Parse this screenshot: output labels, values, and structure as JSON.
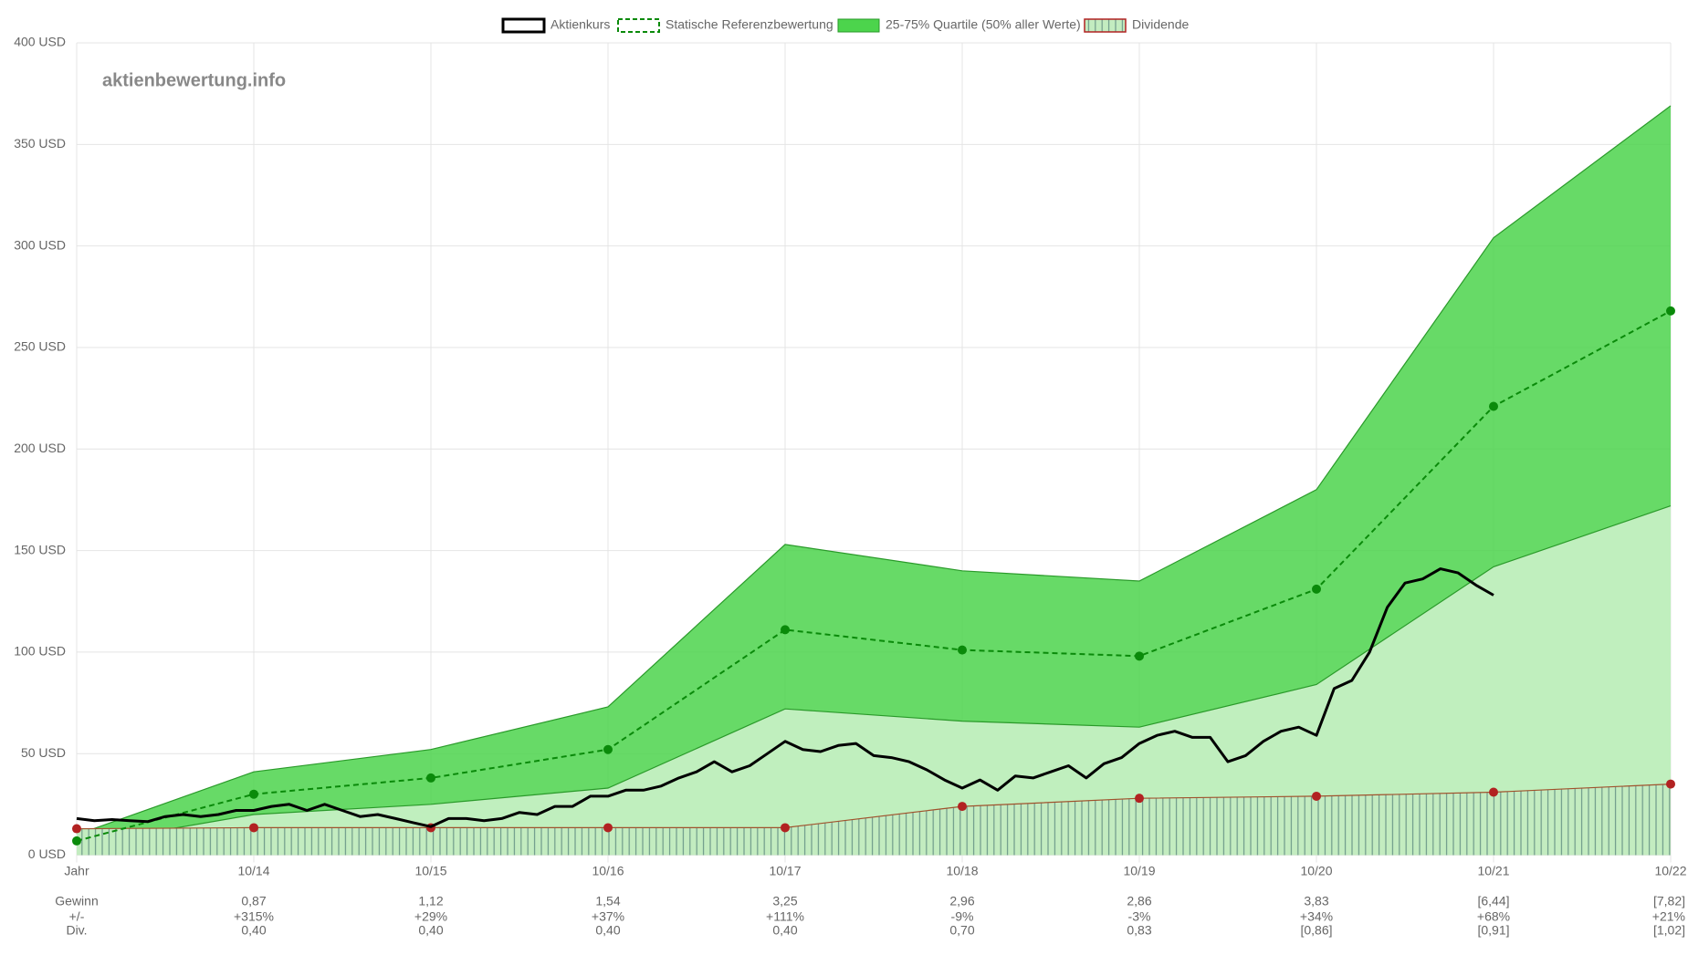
{
  "chart_data": {
    "type": "line",
    "watermark": "aktienbewertung.info",
    "categories": [
      "Jahr",
      "10/14",
      "10/15",
      "10/16",
      "10/17",
      "10/18",
      "10/19",
      "10/20",
      "10/21",
      "10/22"
    ],
    "ylim": [
      0,
      400
    ],
    "yticks": [
      {
        "value": 0,
        "label": "0 USD"
      },
      {
        "value": 50,
        "label": "50 USD"
      },
      {
        "value": 100,
        "label": "100 USD"
      },
      {
        "value": 150,
        "label": "150 USD"
      },
      {
        "value": 200,
        "label": "200 USD"
      },
      {
        "value": 250,
        "label": "250 USD"
      },
      {
        "value": 300,
        "label": "300 USD"
      },
      {
        "value": 350,
        "label": "350 USD"
      },
      {
        "value": 400,
        "label": "400 USD"
      }
    ],
    "grid": true,
    "legend": "top",
    "price": {
      "name": "Aktienkurs",
      "color": "#000000",
      "values": [
        18,
        17,
        17.5,
        17,
        16.5,
        19,
        20,
        19,
        20,
        22,
        22,
        24,
        25,
        22,
        25,
        22,
        19,
        20,
        18,
        16,
        14,
        18,
        18,
        17,
        18,
        21,
        20,
        24,
        24,
        29,
        29,
        32,
        32,
        34,
        38,
        41,
        46,
        41,
        44,
        50,
        56,
        52,
        51,
        54,
        55,
        49,
        48,
        46,
        42,
        37,
        33,
        37,
        32,
        39,
        38,
        41,
        44,
        38,
        45,
        48,
        55,
        59,
        61,
        58,
        58,
        46,
        49,
        56,
        61,
        63,
        59,
        82,
        86,
        100,
        122,
        134,
        136,
        141,
        139,
        133,
        128
      ]
    },
    "reference": {
      "name": "Statische Referenzbewertung",
      "color": "#0a8a0a",
      "values": [
        7,
        30,
        38,
        52,
        111,
        101,
        98,
        131,
        221,
        268
      ]
    },
    "quartiles": {
      "name": "25-75% Quartile (50% aller Werte)",
      "color": "#4cd44c",
      "upper": [
        10,
        41,
        52,
        73,
        153,
        140,
        135,
        180,
        304,
        369
      ],
      "lower": [
        5,
        20,
        25,
        33,
        72,
        66,
        63,
        84,
        142,
        172
      ]
    },
    "dividend": {
      "name": "Dividende",
      "color": "#b22222",
      "values": [
        13,
        13.5,
        13.5,
        13.5,
        13.5,
        24,
        28,
        29,
        31,
        35
      ]
    },
    "table": [
      {
        "label": "Gewinn",
        "cells": [
          "0,87",
          "1,12",
          "1,54",
          "3,25",
          "2,96",
          "2,86",
          "3,83",
          "[6,44]",
          "[7,82]"
        ]
      },
      {
        "label": "+/-",
        "cells": [
          "+315%",
          "+29%",
          "+37%",
          "+111%",
          "-9%",
          "-3%",
          "+34%",
          "+68%",
          "+21%"
        ]
      },
      {
        "label": "Div.",
        "cells": [
          "0,40",
          "0,40",
          "0,40",
          "0,40",
          "0,70",
          "0,83",
          "[0,86]",
          "[0,91]",
          "[1,02]"
        ]
      }
    ]
  }
}
